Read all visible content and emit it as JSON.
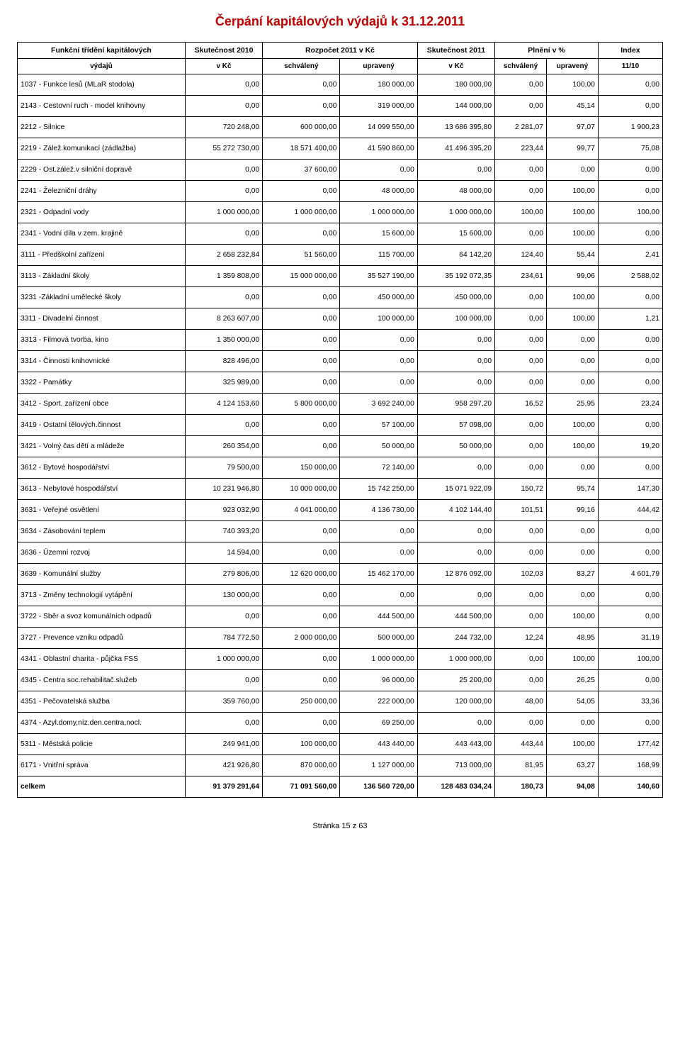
{
  "title": "Čerpání kapitálových výdajů k 31.12.2011",
  "footer": "Stránka 15 z 63",
  "style": {
    "title_color": "#c00000",
    "title_fontsize": 18,
    "body_fontsize": 10.3,
    "border_color": "#000000",
    "background_color": "#ffffff",
    "text_color": "#000000",
    "column_widths": [
      "26%",
      "12%",
      "12%",
      "12%",
      "12%",
      "8%",
      "8%",
      "10%"
    ]
  },
  "header": {
    "row1": {
      "c0": "Funkční třídění kapitálových",
      "c1": "Skutečnost 2010",
      "c2": "Rozpočet 2011 v Kč",
      "c3": "Skutečnost 2011",
      "c4": "Plnění v %",
      "c5": "Index"
    },
    "row2": {
      "c0": "výdajů",
      "c1": "v Kč",
      "c2": "schválený",
      "c3": "upravený",
      "c4": "v Kč",
      "c5": "schválený",
      "c6": "upravený",
      "c7": "11/10"
    }
  },
  "rows": [
    {
      "label": "1037 - Funkce lesů (MLaR stodola)",
      "v": [
        "0,00",
        "0,00",
        "180 000,00",
        "180 000,00",
        "0,00",
        "100,00",
        "0,00"
      ]
    },
    {
      "label": "2143 - Cestovní ruch - model knihovny",
      "v": [
        "0,00",
        "0,00",
        "319 000,00",
        "144 000,00",
        "0,00",
        "45,14",
        "0,00"
      ]
    },
    {
      "label": "2212 - Silnice",
      "v": [
        "720 248,00",
        "600 000,00",
        "14 099 550,00",
        "13 686 395,80",
        "2 281,07",
        "97,07",
        "1 900,23"
      ]
    },
    {
      "label": "2219 - Zálež.komunikací (zádlažba)",
      "v": [
        "55 272 730,00",
        "18 571 400,00",
        "41 590 860,00",
        "41 496 395,20",
        "223,44",
        "99,77",
        "75,08"
      ]
    },
    {
      "label": "2229 - Ost.zálež.v silniční dopravě",
      "v": [
        "0,00",
        "37 600,00",
        "0,00",
        "0,00",
        "0,00",
        "0,00",
        "0,00"
      ]
    },
    {
      "label": "2241 - Železniční dráhy",
      "v": [
        "0,00",
        "0,00",
        "48 000,00",
        "48 000,00",
        "0,00",
        "100,00",
        "0,00"
      ]
    },
    {
      "label": "2321 - Odpadní vody",
      "v": [
        "1 000 000,00",
        "1 000 000,00",
        "1 000 000,00",
        "1 000 000,00",
        "100,00",
        "100,00",
        "100,00"
      ]
    },
    {
      "label": "2341 - Vodní díla v zem. krajině",
      "v": [
        "0,00",
        "0,00",
        "15 600,00",
        "15 600,00",
        "0,00",
        "100,00",
        "0,00"
      ]
    },
    {
      "label": "3111 - Předškolní zařízení",
      "v": [
        "2 658 232,84",
        "51 560,00",
        "115 700,00",
        "64 142,20",
        "124,40",
        "55,44",
        "2,41"
      ]
    },
    {
      "label": "3113 - Základní školy",
      "v": [
        "1 359 808,00",
        "15 000 000,00",
        "35 527 190,00",
        "35 192 072,35",
        "234,61",
        "99,06",
        "2 588,02"
      ]
    },
    {
      "label": "3231 -Základní umělecké školy",
      "v": [
        "0,00",
        "0,00",
        "450 000,00",
        "450 000,00",
        "0,00",
        "100,00",
        "0,00"
      ]
    },
    {
      "label": "3311 - Divadelní činnost",
      "v": [
        "8 263 607,00",
        "0,00",
        "100 000,00",
        "100 000,00",
        "0,00",
        "100,00",
        "1,21"
      ]
    },
    {
      "label": "3313 - Filmová tvorba, kino",
      "v": [
        "1 350 000,00",
        "0,00",
        "0,00",
        "0,00",
        "0,00",
        "0,00",
        "0,00"
      ]
    },
    {
      "label": "3314 - Činnosti knihovnické",
      "v": [
        "828 496,00",
        "0,00",
        "0,00",
        "0,00",
        "0,00",
        "0,00",
        "0,00"
      ]
    },
    {
      "label": "3322 - Památky",
      "v": [
        "325 989,00",
        "0,00",
        "0,00",
        "0,00",
        "0,00",
        "0,00",
        "0,00"
      ]
    },
    {
      "label": "3412 - Sport. zařízení obce",
      "v": [
        "4 124 153,60",
        "5 800 000,00",
        "3 692 240,00",
        "958 297,20",
        "16,52",
        "25,95",
        "23,24"
      ]
    },
    {
      "label": "3419 - Ostatní tělových.činnost",
      "v": [
        "0,00",
        "0,00",
        "57 100,00",
        "57 098,00",
        "0,00",
        "100,00",
        "0,00"
      ]
    },
    {
      "label": "3421 - Volný čas dětí a mládeže",
      "v": [
        "260 354,00",
        "0,00",
        "50 000,00",
        "50 000,00",
        "0,00",
        "100,00",
        "19,20"
      ]
    },
    {
      "label": "3612 - Bytové hospodářství",
      "v": [
        "79 500,00",
        "150 000,00",
        "72 140,00",
        "0,00",
        "0,00",
        "0,00",
        "0,00"
      ]
    },
    {
      "label": "3613 - Nebytové hospodářství",
      "v": [
        "10 231 946,80",
        "10 000 000,00",
        "15 742 250,00",
        "15 071 922,09",
        "150,72",
        "95,74",
        "147,30"
      ]
    },
    {
      "label": "3631 - Veřejné osvětlení",
      "v": [
        "923 032,90",
        "4 041 000,00",
        "4 136 730,00",
        "4 102 144,40",
        "101,51",
        "99,16",
        "444,42"
      ]
    },
    {
      "label": "3634 - Zásobování teplem",
      "v": [
        "740 393,20",
        "0,00",
        "0,00",
        "0,00",
        "0,00",
        "0,00",
        "0,00"
      ]
    },
    {
      "label": "3636 - Územní rozvoj",
      "v": [
        "14 594,00",
        "0,00",
        "0,00",
        "0,00",
        "0,00",
        "0,00",
        "0,00"
      ]
    },
    {
      "label": "3639 - Komunální služby",
      "v": [
        "279 806,00",
        "12 620 000,00",
        "15 462 170,00",
        "12 876 092,00",
        "102,03",
        "83,27",
        "4 601,79"
      ]
    },
    {
      "label": "3713 - Změny technologií vytápění",
      "v": [
        "130 000,00",
        "0,00",
        "0,00",
        "0,00",
        "0,00",
        "0,00",
        "0,00"
      ]
    },
    {
      "label": "3722 - Sběr a svoz komunálních odpadů",
      "v": [
        "0,00",
        "0,00",
        "444 500,00",
        "444 500,00",
        "0,00",
        "100,00",
        "0,00"
      ]
    },
    {
      "label": "3727 - Prevence vzniku odpadů",
      "v": [
        "784 772,50",
        "2 000 000,00",
        "500 000,00",
        "244 732,00",
        "12,24",
        "48,95",
        "31,19"
      ]
    },
    {
      "label": "4341 - Oblastní charita - půjčka FSS",
      "v": [
        "1 000 000,00",
        "0,00",
        "1 000 000,00",
        "1 000 000,00",
        "0,00",
        "100,00",
        "100,00"
      ]
    },
    {
      "label": "4345 - Centra soc.rehabilitač.služeb",
      "v": [
        "0,00",
        "0,00",
        "96 000,00",
        "25 200,00",
        "0,00",
        "26,25",
        "0,00"
      ]
    },
    {
      "label": "4351 - Pečovatelská služba",
      "v": [
        "359 760,00",
        "250 000,00",
        "222 000,00",
        "120 000,00",
        "48,00",
        "54,05",
        "33,36"
      ]
    },
    {
      "label": "4374 - Azyl.domy,níz.den.centra,nocl.",
      "v": [
        "0,00",
        "0,00",
        "69 250,00",
        "0,00",
        "0,00",
        "0,00",
        "0,00"
      ]
    },
    {
      "label": "5311 - Městská policie",
      "v": [
        "249 941,00",
        "100 000,00",
        "443 440,00",
        "443 443,00",
        "443,44",
        "100,00",
        "177,42"
      ]
    },
    {
      "label": "6171 - Vnitřní správa",
      "v": [
        "421 926,80",
        "870 000,00",
        "1 127 000,00",
        "713 000,00",
        "81,95",
        "63,27",
        "168,99"
      ]
    }
  ],
  "total": {
    "label": "celkem",
    "v": [
      "91 379 291,64",
      "71 091 560,00",
      "136 560 720,00",
      "128 483 034,24",
      "180,73",
      "94,08",
      "140,60"
    ]
  }
}
